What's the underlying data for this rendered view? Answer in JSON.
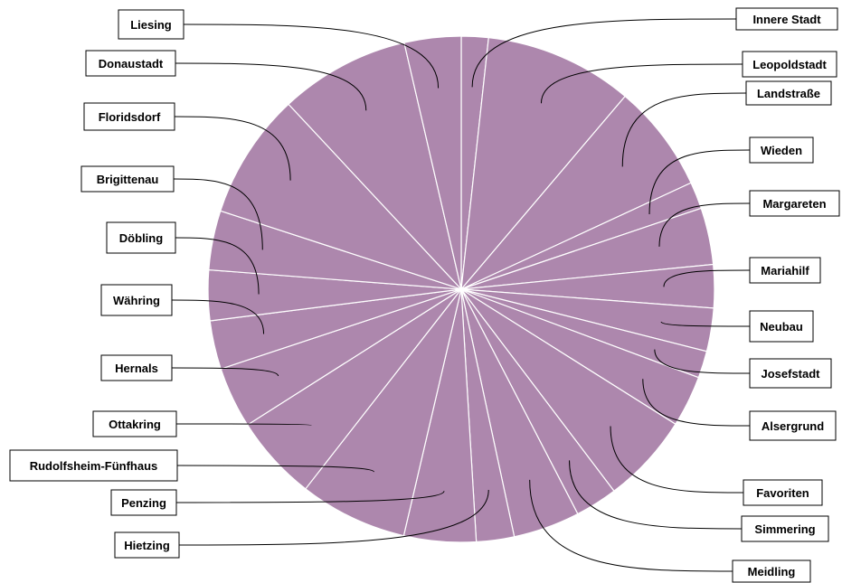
{
  "chart_data": {
    "type": "pie",
    "title": "",
    "color": "#ad87ad",
    "categories": [
      "Innere Stadt",
      "Leopoldstadt",
      "Landstraße",
      "Wieden",
      "Margareten",
      "Mariahilf",
      "Neubau",
      "Josefstadt",
      "Alsergrund",
      "Favoriten",
      "Simmering",
      "Meidling",
      "Hietzing",
      "Penzing",
      "Rudolfsheim-Fünfhaus",
      "Ottakring",
      "Hernals",
      "Währing",
      "Döbling",
      "Brigittenau",
      "Floridsdorf",
      "Donaustadt",
      "Liesing"
    ],
    "values": [
      3.0,
      16.5,
      12.0,
      3.0,
      6.3,
      4.8,
      4.8,
      3.0,
      5.7,
      10.0,
      4.7,
      7.4,
      4.2,
      8.0,
      12.0,
      9.5,
      6.8,
      5.4,
      5.6,
      6.6,
      14.0,
      14.5,
      6.3
    ],
    "legend": "none"
  }
}
